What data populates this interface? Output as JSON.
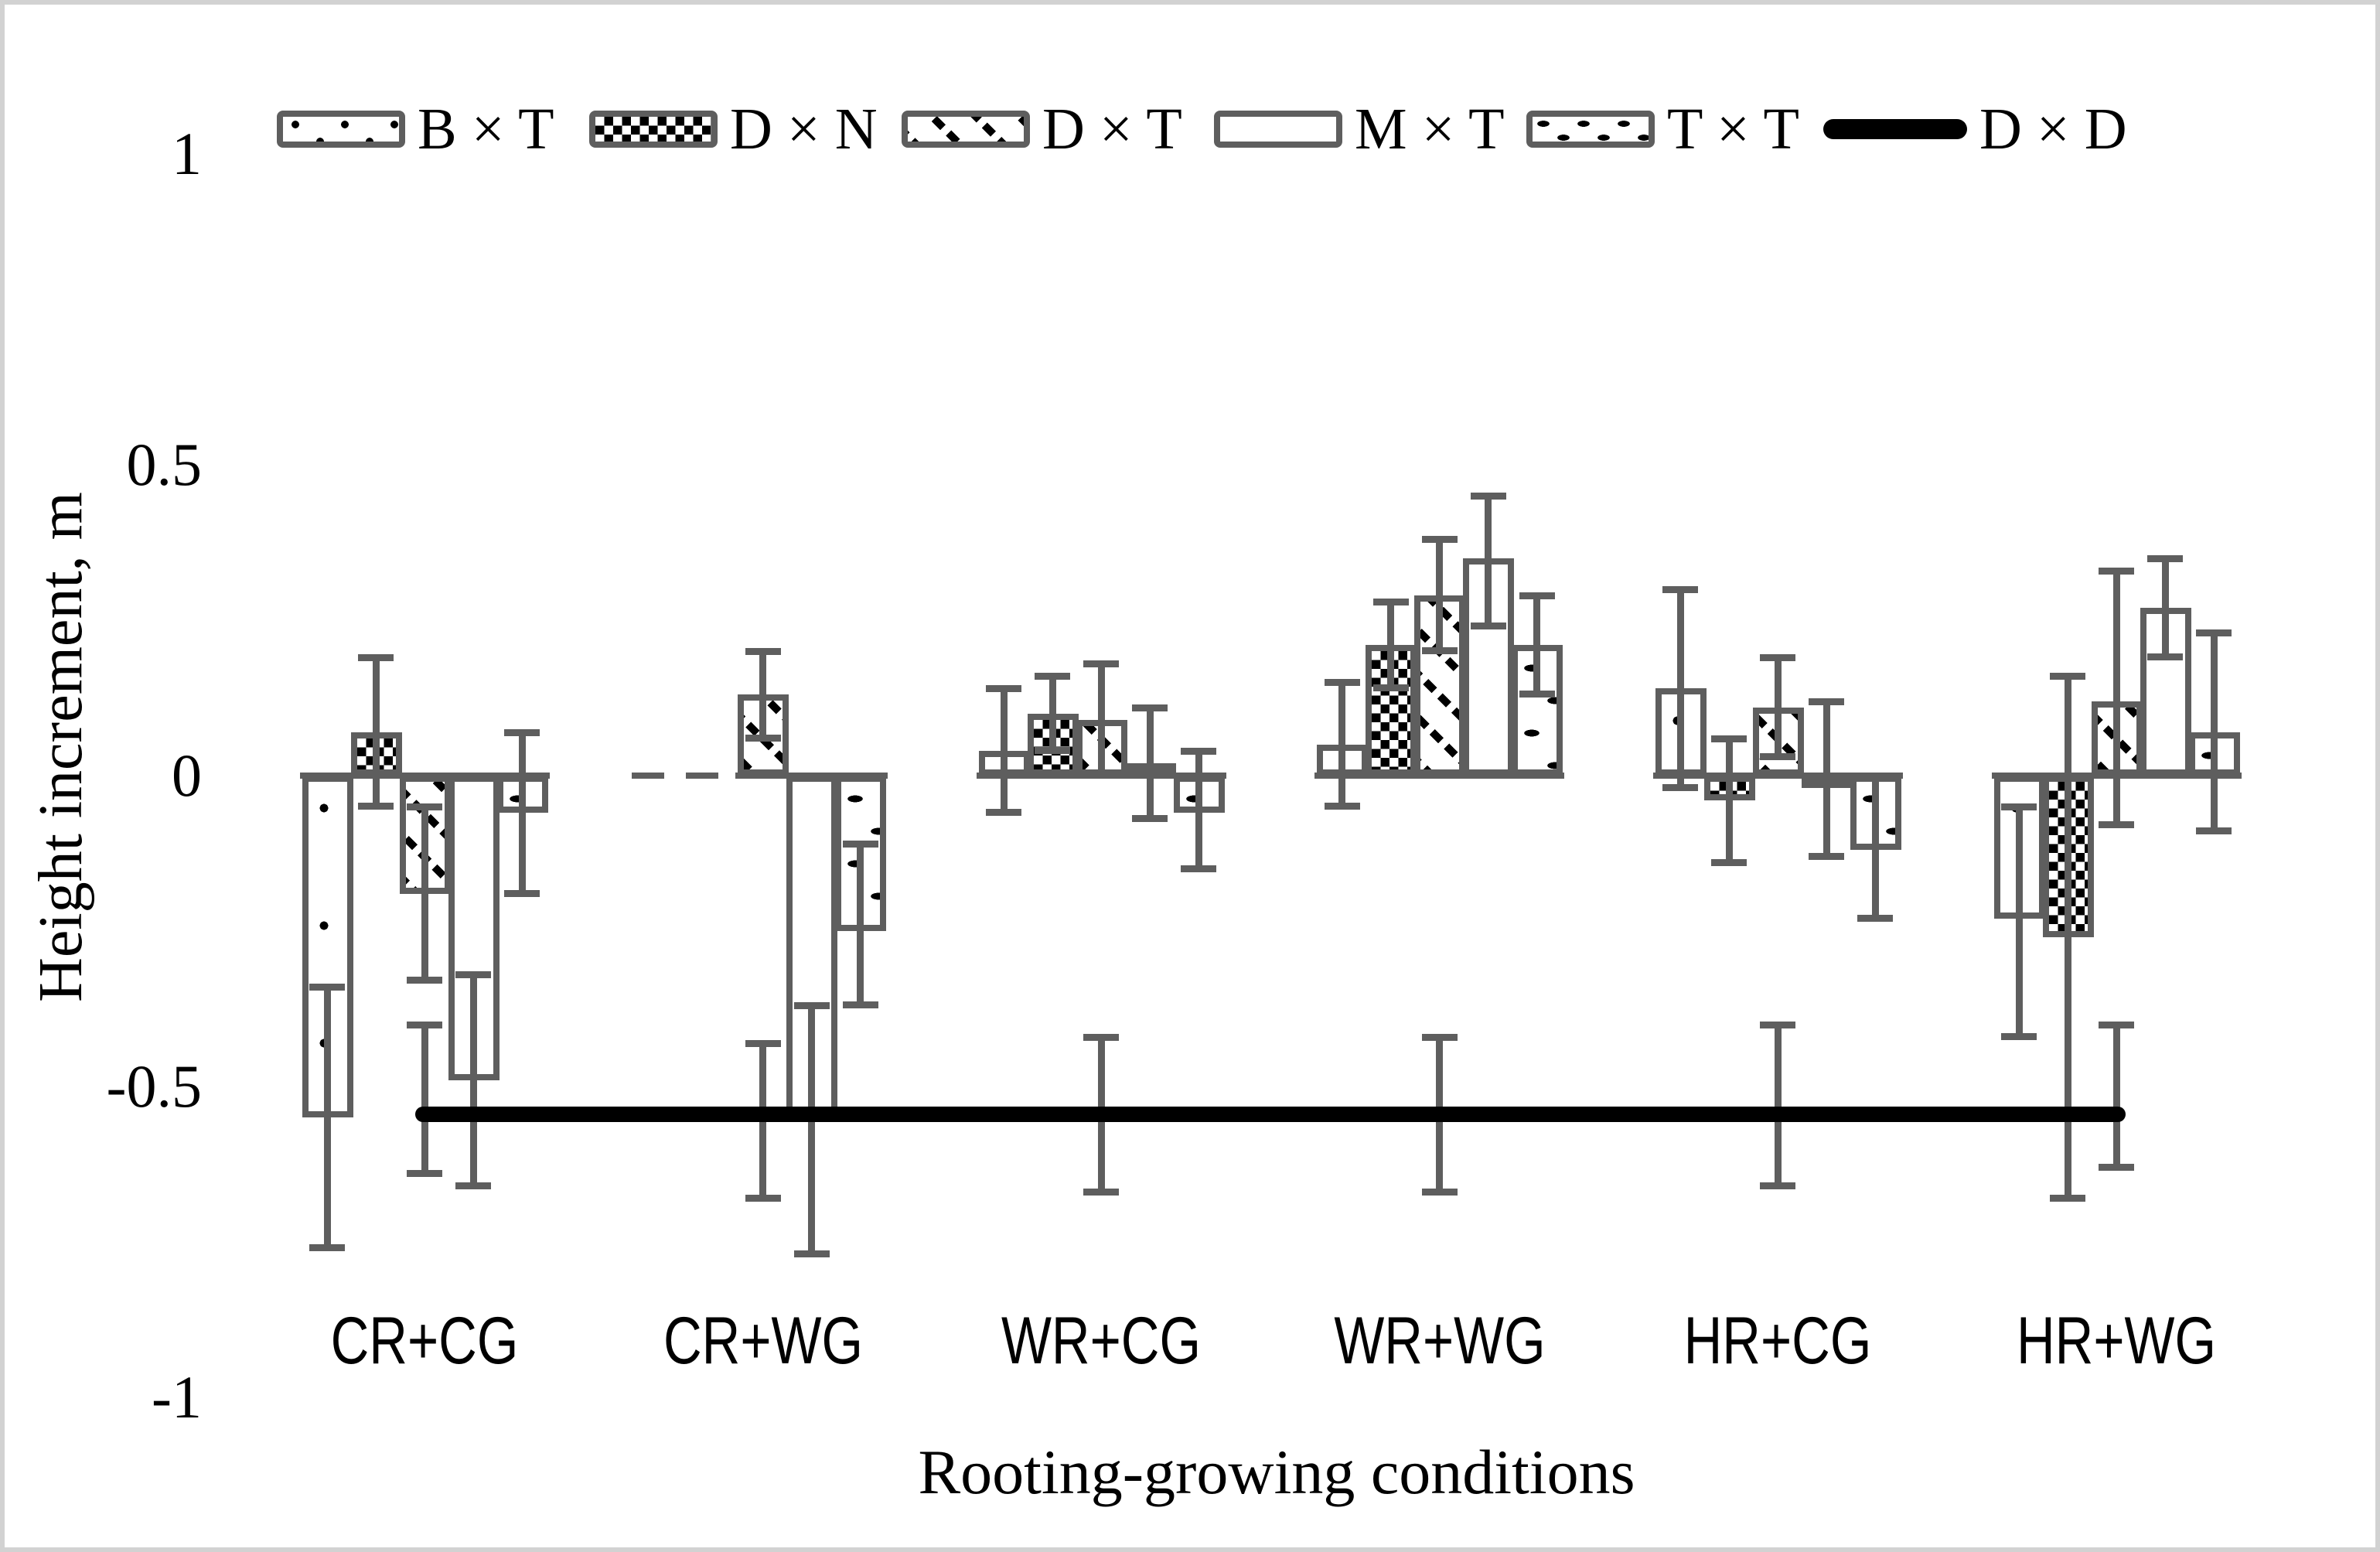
{
  "figure": {
    "background": "#FFFFFF",
    "border_color": "#D2D2D2"
  },
  "colors": {
    "bar_outline": "#5E5E5E",
    "error_bar": "#5E5E5E",
    "dd_line": "#000000",
    "text": "#000000"
  },
  "y_axis": {
    "title": "Height increment, m",
    "ticks": [
      {
        "label": "1",
        "value": 1
      },
      {
        "label": "0.5",
        "value": 0.5
      },
      {
        "label": "0",
        "value": 0
      },
      {
        "label": "-0.5",
        "value": -0.5
      },
      {
        "label": "-1",
        "value": -1
      }
    ]
  },
  "x_axis": {
    "title": "Rooting-growing conditions"
  },
  "legend": [
    {
      "label": "B × T",
      "pattern": "bxt",
      "swatch": "box"
    },
    {
      "label": "D × N",
      "pattern": "dxn",
      "swatch": "box"
    },
    {
      "label": "D × T",
      "pattern": "dxt",
      "swatch": "box"
    },
    {
      "label": "M × T",
      "pattern": "mxt",
      "swatch": "box"
    },
    {
      "label": "T × T",
      "pattern": "txt",
      "swatch": "box"
    },
    {
      "label": "D × D",
      "pattern": "line",
      "swatch": "line"
    }
  ],
  "chart_data": {
    "type": "bar",
    "title": "",
    "xlabel": "Rooting-growing conditions",
    "ylabel": "Height increment, m",
    "ylim": [
      -1,
      1
    ],
    "grid": false,
    "legend_position": "top",
    "categories": [
      "CR+CG",
      "CR+WG",
      "WR+CG",
      "WR+WG",
      "HR+CG",
      "HR+WG"
    ],
    "series": [
      {
        "name": "B × T",
        "pattern": "bxt",
        "values": [
          -0.55,
          null,
          0.04,
          0.05,
          0.14,
          -0.23
        ],
        "err_hi": [
          -0.34,
          null,
          0.14,
          0.15,
          0.3,
          -0.05
        ],
        "err_lo": [
          -0.76,
          null,
          -0.06,
          -0.05,
          -0.02,
          -0.42
        ]
      },
      {
        "name": "D × N",
        "pattern": "dxn",
        "values": [
          0.07,
          null,
          0.1,
          0.21,
          -0.04,
          -0.26
        ],
        "err_hi": [
          0.19,
          null,
          0.16,
          0.28,
          0.06,
          0.16
        ],
        "err_lo": [
          -0.05,
          null,
          0.04,
          0.14,
          -0.14,
          -0.68
        ]
      },
      {
        "name": "D × T",
        "pattern": "dxt",
        "values": [
          -0.19,
          0.13,
          0.09,
          0.29,
          0.11,
          0.12
        ],
        "err_hi": [
          -0.05,
          0.2,
          0.18,
          0.38,
          0.19,
          0.33
        ],
        "err_lo": [
          -0.33,
          0.06,
          0.0,
          0.2,
          0.03,
          -0.08
        ]
      },
      {
        "name": "M × T",
        "pattern": "mxt",
        "values": [
          -0.49,
          -0.55,
          0.02,
          0.35,
          -0.02,
          0.27
        ],
        "err_hi": [
          -0.32,
          -0.37,
          0.11,
          0.45,
          0.12,
          0.35
        ],
        "err_lo": [
          -0.66,
          -0.77,
          -0.07,
          0.24,
          -0.13,
          0.19
        ]
      },
      {
        "name": "T × T",
        "pattern": "txt",
        "values": [
          -0.06,
          -0.25,
          -0.06,
          0.21,
          -0.12,
          0.07
        ],
        "err_hi": [
          0.07,
          -0.11,
          0.04,
          0.29,
          0.0,
          0.23
        ],
        "err_lo": [
          -0.19,
          -0.37,
          -0.15,
          0.13,
          -0.23,
          -0.09
        ]
      }
    ],
    "line_series": {
      "name": "D × D",
      "value": -0.545,
      "err_hi": [
        -0.4,
        -0.43,
        -0.42,
        -0.42,
        -0.4,
        -0.4
      ],
      "err_lo": [
        -0.64,
        -0.68,
        -0.67,
        -0.67,
        -0.66,
        -0.63
      ]
    },
    "missing_bars_note": "B × T and D × N have no bars in CR+WG; baseline drawn dashed there"
  }
}
